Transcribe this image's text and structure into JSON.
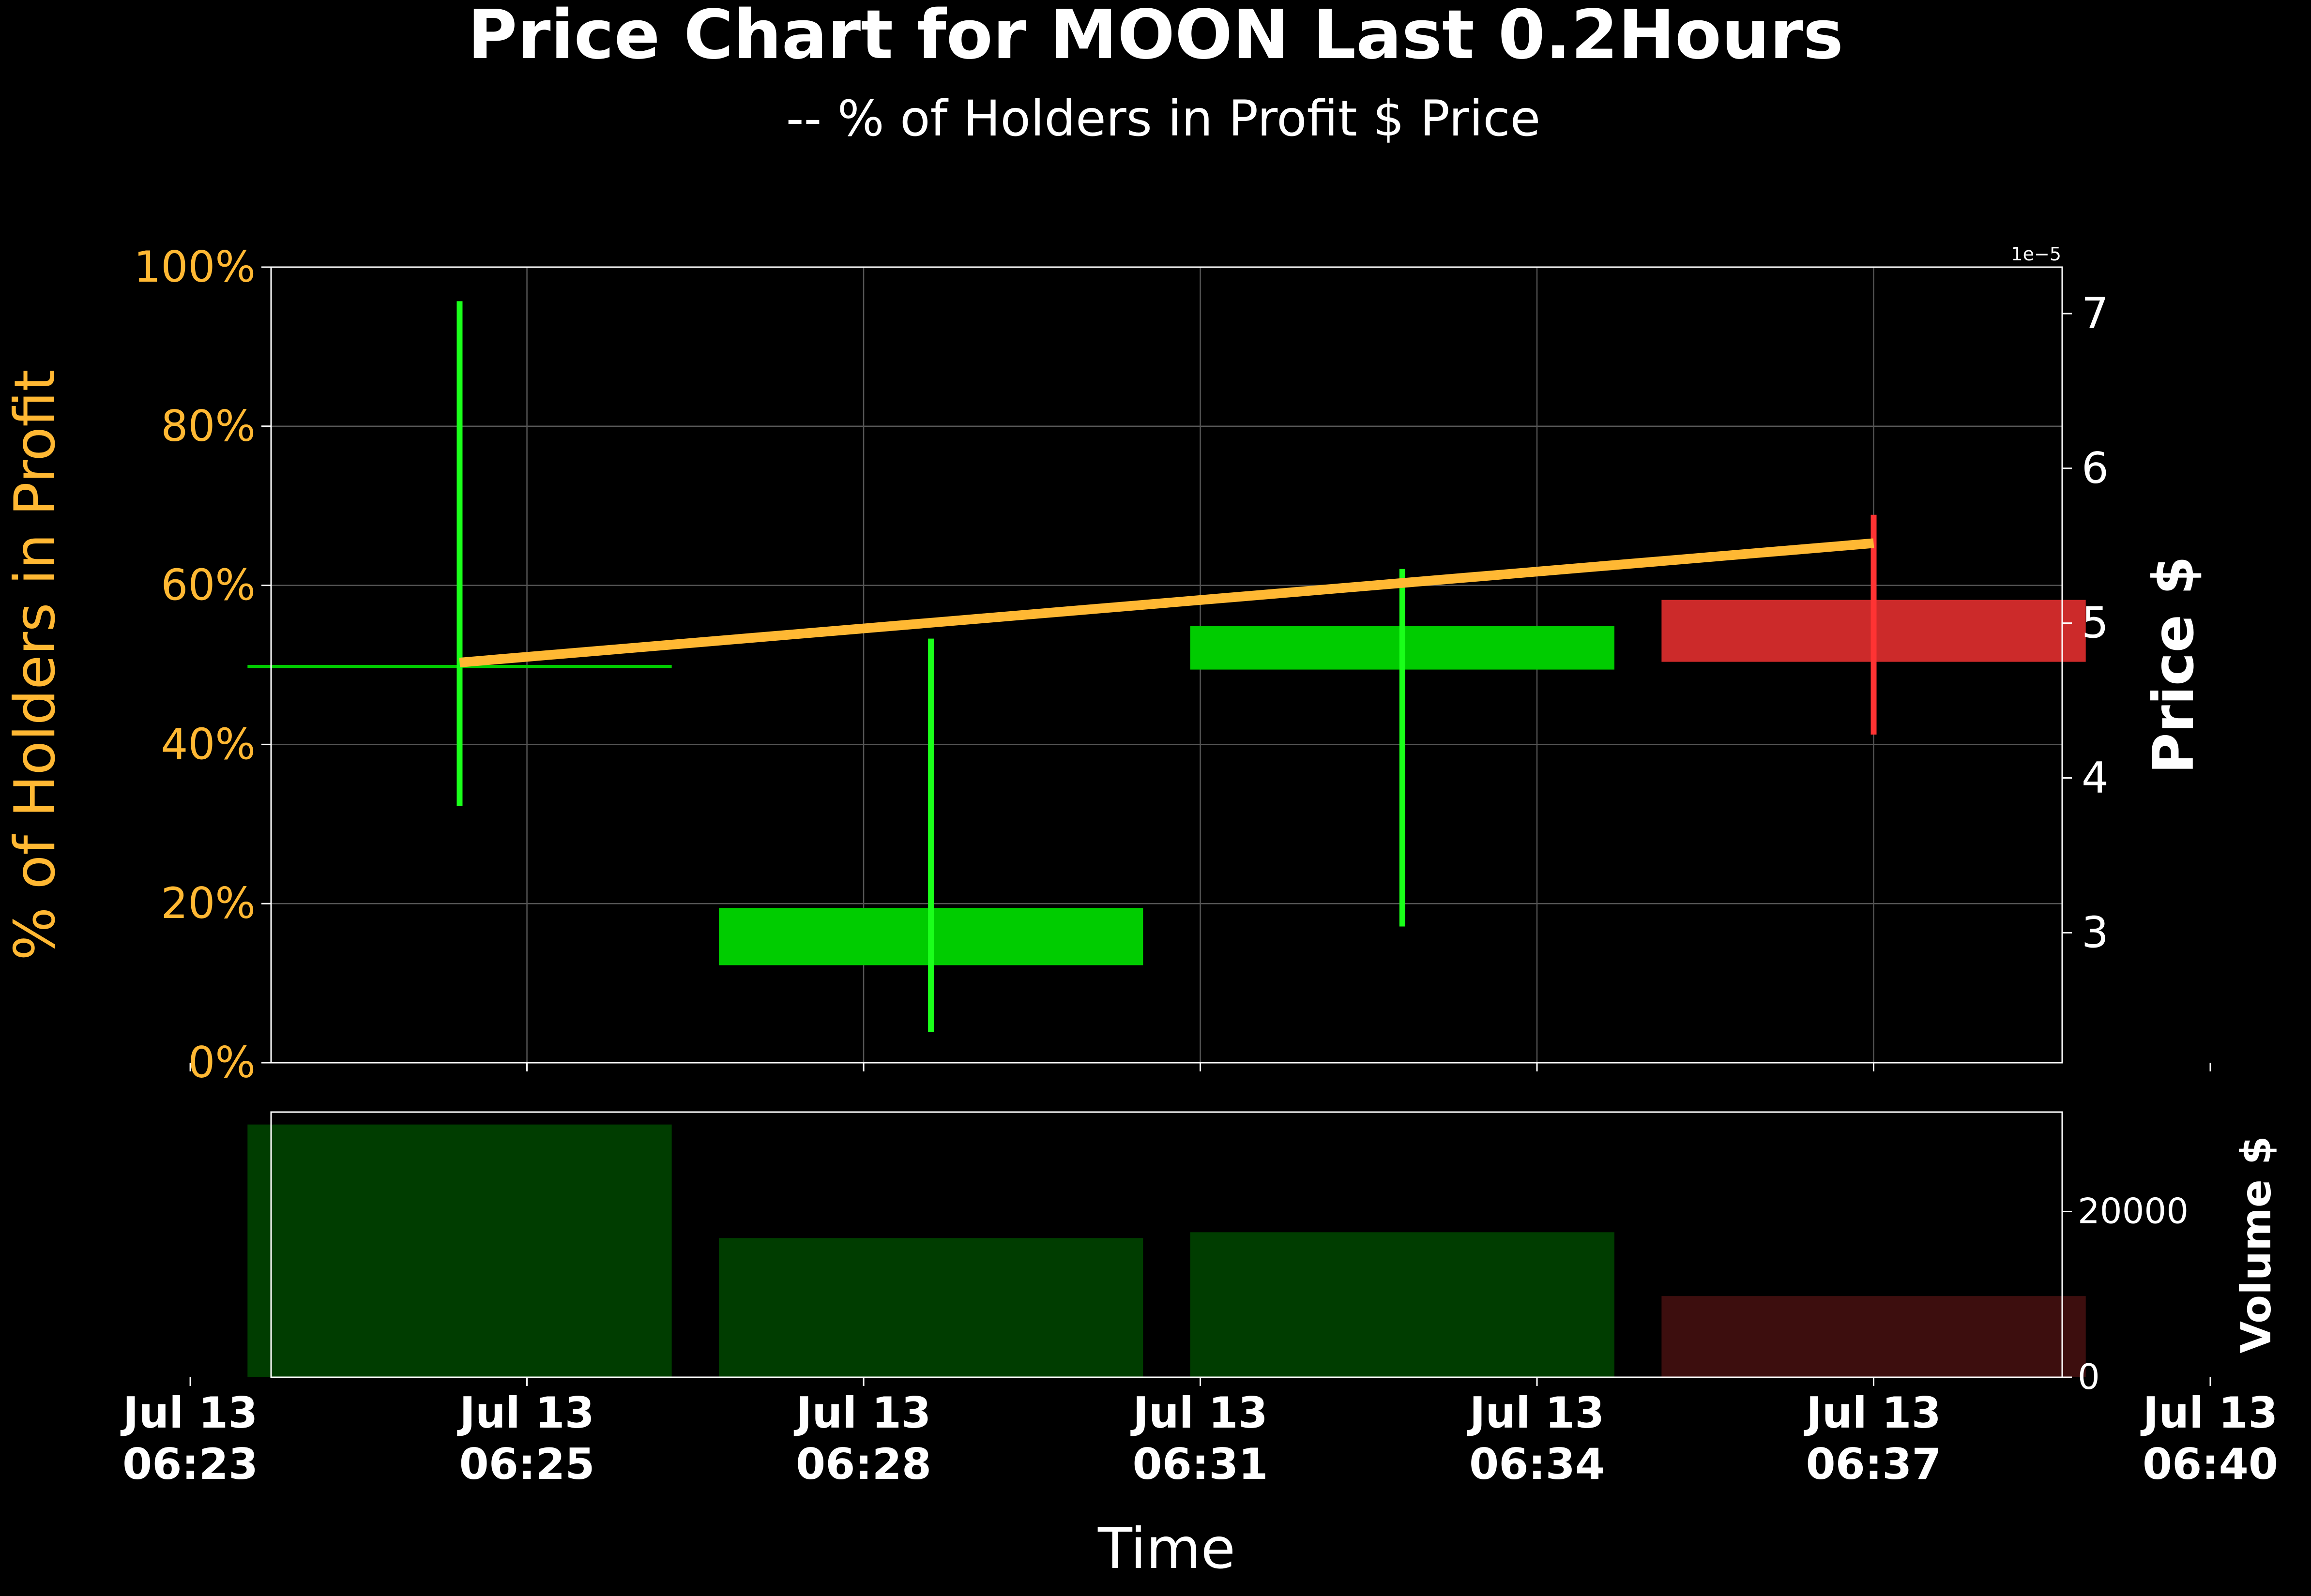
{
  "chart_data": {
    "type": "candlestick",
    "title": "Price Chart for MOON Last 0.2Hours",
    "subtitle": "-- % of Holders in Profit $ Price",
    "xlabel": "Time",
    "x_ticks": [
      "Jul 13\n06:23",
      "Jul 13\n06:25",
      "Jul 13\n06:28",
      "Jul 13\n06:31",
      "Jul 13\n06:34",
      "Jul 13\n06:37",
      "Jul 13\n06:40"
    ],
    "price_axis": {
      "label": "Price $",
      "multiplier_label": "1e−5",
      "ticks": [
        "3",
        "4",
        "5",
        "6",
        "7"
      ],
      "range": [
        2.16,
        7.3
      ]
    },
    "holders_axis": {
      "label": "% of Holders in Profit",
      "ticks": [
        "0%",
        "20%",
        "40%",
        "60%",
        "80%",
        "100%"
      ],
      "range": [
        0,
        100
      ]
    },
    "volume_axis": {
      "label": "Volume $",
      "ticks": [
        "0",
        "20000"
      ],
      "range": [
        0,
        32000
      ]
    },
    "candles": [
      {
        "time_min": 2.0,
        "open": 4.71,
        "close": 4.73,
        "high": 7.08,
        "low": 3.82,
        "volume": 30500,
        "direction": "up"
      },
      {
        "time_min": 5.5,
        "open": 2.79,
        "close": 3.16,
        "high": 4.9,
        "low": 2.36,
        "volume": 16800,
        "direction": "up"
      },
      {
        "time_min": 9.0,
        "open": 4.7,
        "close": 4.98,
        "high": 5.35,
        "low": 3.04,
        "volume": 17500,
        "direction": "up"
      },
      {
        "time_min": 12.5,
        "open": 5.15,
        "close": 4.75,
        "high": 5.7,
        "low": 4.28,
        "volume": 9800,
        "direction": "down"
      }
    ],
    "holders_in_profit_pct": [
      {
        "time_min": 2.0,
        "value": 50.3
      },
      {
        "time_min": 12.5,
        "value": 65.3
      }
    ],
    "colors": {
      "background": "#000000",
      "up_body": "#00cc00",
      "up_wick": "#1aff1a",
      "down_body": "#cc2a2a",
      "down_wick": "#ff3333",
      "holders_line": "#ffb833",
      "volume_up": "#003d00",
      "volume_down": "#3d0e0e",
      "axis_orange": "#ffb833",
      "text": "#ffffff"
    },
    "grid": true
  }
}
